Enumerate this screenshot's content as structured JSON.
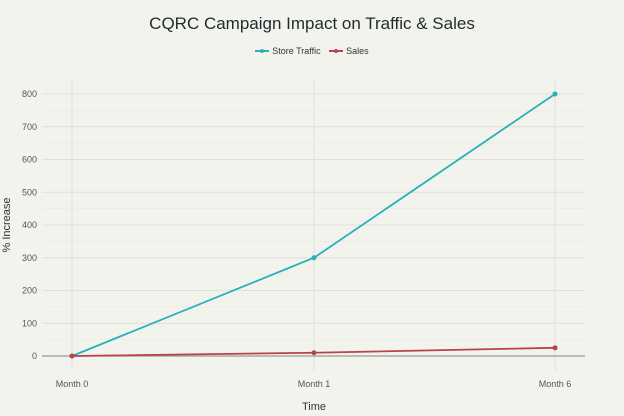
{
  "chart_data": {
    "type": "line",
    "title": "CQRC Campaign Impact on Traffic & Sales",
    "xlabel": "Time",
    "ylabel": "% Increase",
    "categories": [
      "Month 0",
      "Month 1",
      "Month 6"
    ],
    "series": [
      {
        "name": "Store Traffic",
        "color": "#2ab0b8",
        "values": [
          0,
          300,
          800
        ]
      },
      {
        "name": "Sales",
        "color": "#b8434a",
        "values": [
          0,
          10,
          25
        ]
      }
    ],
    "ylim": [
      0,
      800
    ],
    "yticks": [
      0,
      100,
      200,
      300,
      400,
      500,
      600,
      700,
      800
    ],
    "grid": true,
    "legend_position": "top-center"
  }
}
